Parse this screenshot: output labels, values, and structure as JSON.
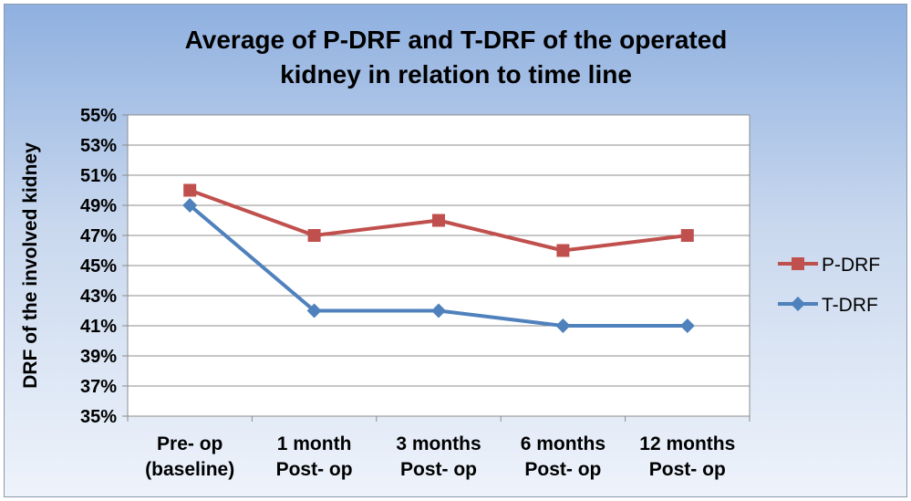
{
  "chart_data": {
    "type": "line",
    "title_lines": [
      "Average of P-DRF and T-DRF of the operated",
      "kidney in relation to time line"
    ],
    "ylabel": "DRF of the involved kidney",
    "xlabel": "",
    "categories": [
      [
        "Pre- op",
        "(baseline)"
      ],
      [
        "1 month",
        "Post- op"
      ],
      [
        "3 months",
        "Post- op"
      ],
      [
        "6 months",
        "Post- op"
      ],
      [
        "12 months",
        "Post- op"
      ]
    ],
    "ylim": [
      35,
      55
    ],
    "ytick_step": 2,
    "ytick_labels": [
      "35%",
      "37%",
      "39%",
      "41%",
      "43%",
      "45%",
      "47%",
      "49%",
      "51%",
      "53%",
      "55%"
    ],
    "grid": true,
    "legend_position": "right",
    "series": [
      {
        "name": "P-DRF",
        "values": [
          50,
          47,
          48,
          46,
          47
        ],
        "color": "#c0504d",
        "marker": "square"
      },
      {
        "name": "T-DRF",
        "values": [
          49,
          42,
          42,
          41,
          41
        ],
        "color": "#4f81bd",
        "marker": "diamond"
      }
    ]
  }
}
